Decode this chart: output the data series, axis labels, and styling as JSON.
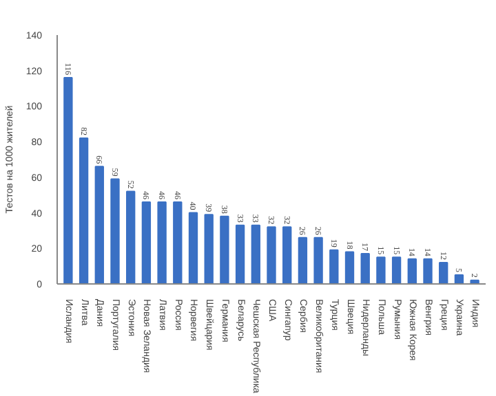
{
  "chart_data": {
    "type": "bar",
    "ylabel": "Тестов на 1000 жителей",
    "categories": [
      "Исландия",
      "Литва",
      "Дания",
      "Португалия",
      "Эстония",
      "Новая Зеландия",
      "Латвия",
      "Россия",
      "Норвегия",
      "Швейцария",
      "Германия",
      "Беларусь",
      "Чешская Республика",
      "США",
      "Сингапур",
      "Сербия",
      "Великобритания",
      "Турция",
      "Швеция",
      "Нидерланды",
      "Польша",
      "Румыния",
      "Южная Корея",
      "Венгрия",
      "Греция",
      "Украина",
      "Индия"
    ],
    "values": [
      116,
      82,
      66,
      59,
      52,
      46,
      46,
      46,
      40,
      39,
      38,
      33,
      33,
      32,
      32,
      26,
      26,
      19,
      18,
      17,
      15,
      15,
      14,
      14,
      12,
      5,
      2
    ],
    "color": "#3a70c4",
    "ylim": [
      0,
      140
    ],
    "yticks": [
      0,
      20,
      40,
      60,
      80,
      100,
      120,
      140
    ],
    "data_labels": true,
    "grid": false
  }
}
